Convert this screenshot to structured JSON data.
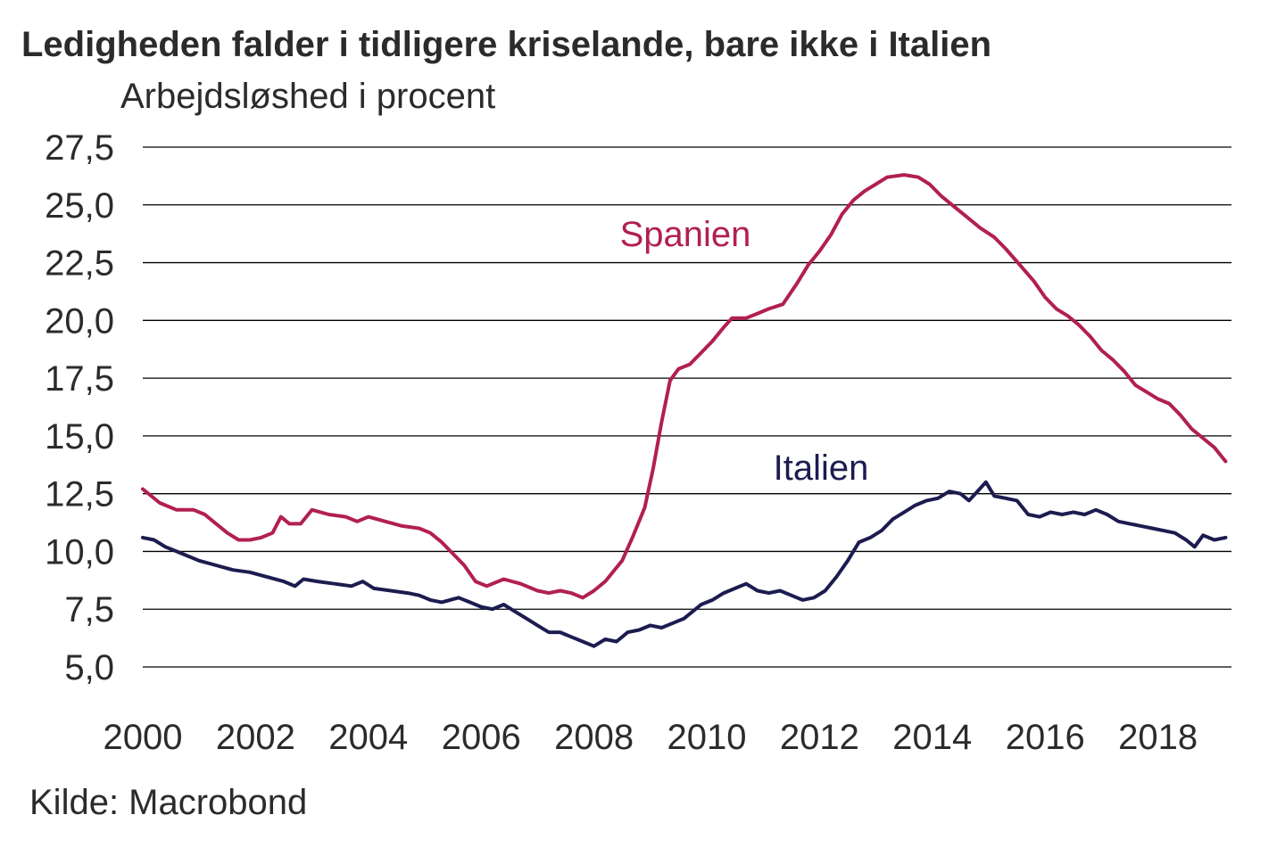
{
  "title": "Ledigheden falder i tidligere kriselande, bare ikke i Italien",
  "source": "Kilde: Macrobond",
  "colors": {
    "spanien": "#b1204f",
    "italien": "#1c1c50",
    "grid": "#000000",
    "text": "#2b2b2b"
  },
  "chart_data": {
    "type": "line",
    "ylabel": "Arbejdsløshed i procent",
    "xlabel": "",
    "ylim": [
      5.0,
      27.5
    ],
    "xlim": [
      2000,
      2019.3
    ],
    "grid": true,
    "legend": "inline labels",
    "yticks": [
      "5,0",
      "7,5",
      "10,0",
      "12,5",
      "15,0",
      "17,5",
      "20,0",
      "22,5",
      "25,0",
      "27,5"
    ],
    "ytick_values": [
      5.0,
      7.5,
      10.0,
      12.5,
      15.0,
      17.5,
      20.0,
      22.5,
      25.0,
      27.5
    ],
    "xticks": [
      "2000",
      "2002",
      "2004",
      "2006",
      "2008",
      "2010",
      "2012",
      "2014",
      "2016",
      "2018"
    ],
    "xtick_values": [
      2000,
      2002,
      2004,
      2006,
      2008,
      2010,
      2012,
      2014,
      2016,
      2018
    ],
    "series": [
      {
        "name": "Spanien",
        "color": "#b1204f",
        "points": [
          [
            2000.0,
            12.7
          ],
          [
            2000.3,
            12.1
          ],
          [
            2000.6,
            11.8
          ],
          [
            2000.9,
            11.8
          ],
          [
            2001.1,
            11.6
          ],
          [
            2001.3,
            11.2
          ],
          [
            2001.5,
            10.8
          ],
          [
            2001.7,
            10.5
          ],
          [
            2001.9,
            10.5
          ],
          [
            2002.1,
            10.6
          ],
          [
            2002.3,
            10.8
          ],
          [
            2002.45,
            11.5
          ],
          [
            2002.6,
            11.2
          ],
          [
            2002.8,
            11.2
          ],
          [
            2003.0,
            11.8
          ],
          [
            2003.3,
            11.6
          ],
          [
            2003.6,
            11.5
          ],
          [
            2003.8,
            11.3
          ],
          [
            2004.0,
            11.5
          ],
          [
            2004.3,
            11.3
          ],
          [
            2004.6,
            11.1
          ],
          [
            2004.9,
            11.0
          ],
          [
            2005.1,
            10.8
          ],
          [
            2005.3,
            10.4
          ],
          [
            2005.5,
            9.9
          ],
          [
            2005.7,
            9.4
          ],
          [
            2005.9,
            8.7
          ],
          [
            2006.1,
            8.5
          ],
          [
            2006.4,
            8.8
          ],
          [
            2006.7,
            8.6
          ],
          [
            2007.0,
            8.3
          ],
          [
            2007.2,
            8.2
          ],
          [
            2007.4,
            8.3
          ],
          [
            2007.6,
            8.2
          ],
          [
            2007.8,
            8.0
          ],
          [
            2008.0,
            8.3
          ],
          [
            2008.2,
            8.7
          ],
          [
            2008.5,
            9.6
          ],
          [
            2008.7,
            10.7
          ],
          [
            2008.9,
            11.9
          ],
          [
            2009.05,
            13.6
          ],
          [
            2009.2,
            15.6
          ],
          [
            2009.35,
            17.4
          ],
          [
            2009.5,
            17.9
          ],
          [
            2009.7,
            18.1
          ],
          [
            2009.9,
            18.6
          ],
          [
            2010.1,
            19.1
          ],
          [
            2010.3,
            19.7
          ],
          [
            2010.45,
            20.1
          ],
          [
            2010.7,
            20.1
          ],
          [
            2010.9,
            20.3
          ],
          [
            2011.1,
            20.5
          ],
          [
            2011.35,
            20.7
          ],
          [
            2011.6,
            21.6
          ],
          [
            2011.8,
            22.4
          ],
          [
            2012.0,
            23.0
          ],
          [
            2012.2,
            23.7
          ],
          [
            2012.4,
            24.6
          ],
          [
            2012.6,
            25.2
          ],
          [
            2012.8,
            25.6
          ],
          [
            2013.0,
            25.9
          ],
          [
            2013.2,
            26.2
          ],
          [
            2013.5,
            26.3
          ],
          [
            2013.75,
            26.2
          ],
          [
            2013.95,
            25.9
          ],
          [
            2014.15,
            25.4
          ],
          [
            2014.4,
            24.9
          ],
          [
            2014.6,
            24.5
          ],
          [
            2014.85,
            24.0
          ],
          [
            2015.1,
            23.6
          ],
          [
            2015.3,
            23.1
          ],
          [
            2015.55,
            22.4
          ],
          [
            2015.8,
            21.7
          ],
          [
            2016.0,
            21.0
          ],
          [
            2016.2,
            20.5
          ],
          [
            2016.4,
            20.2
          ],
          [
            2016.6,
            19.8
          ],
          [
            2016.8,
            19.3
          ],
          [
            2017.0,
            18.7
          ],
          [
            2017.2,
            18.3
          ],
          [
            2017.4,
            17.8
          ],
          [
            2017.6,
            17.2
          ],
          [
            2017.8,
            16.9
          ],
          [
            2018.0,
            16.6
          ],
          [
            2018.2,
            16.4
          ],
          [
            2018.4,
            15.9
          ],
          [
            2018.6,
            15.3
          ],
          [
            2018.8,
            14.9
          ],
          [
            2019.0,
            14.5
          ],
          [
            2019.2,
            13.9
          ]
        ]
      },
      {
        "name": "Italien",
        "color": "#1c1c50",
        "points": [
          [
            2000.0,
            10.6
          ],
          [
            2000.2,
            10.5
          ],
          [
            2000.4,
            10.2
          ],
          [
            2000.6,
            10.0
          ],
          [
            2000.8,
            9.8
          ],
          [
            2001.0,
            9.6
          ],
          [
            2001.3,
            9.4
          ],
          [
            2001.6,
            9.2
          ],
          [
            2001.9,
            9.1
          ],
          [
            2002.2,
            8.9
          ],
          [
            2002.5,
            8.7
          ],
          [
            2002.7,
            8.5
          ],
          [
            2002.85,
            8.8
          ],
          [
            2003.1,
            8.7
          ],
          [
            2003.4,
            8.6
          ],
          [
            2003.7,
            8.5
          ],
          [
            2003.9,
            8.7
          ],
          [
            2004.1,
            8.4
          ],
          [
            2004.4,
            8.3
          ],
          [
            2004.7,
            8.2
          ],
          [
            2004.9,
            8.1
          ],
          [
            2005.1,
            7.9
          ],
          [
            2005.3,
            7.8
          ],
          [
            2005.6,
            8.0
          ],
          [
            2005.8,
            7.8
          ],
          [
            2006.0,
            7.6
          ],
          [
            2006.2,
            7.5
          ],
          [
            2006.4,
            7.7
          ],
          [
            2006.6,
            7.4
          ],
          [
            2006.8,
            7.1
          ],
          [
            2007.0,
            6.8
          ],
          [
            2007.2,
            6.5
          ],
          [
            2007.4,
            6.5
          ],
          [
            2007.6,
            6.3
          ],
          [
            2007.8,
            6.1
          ],
          [
            2008.0,
            5.9
          ],
          [
            2008.2,
            6.2
          ],
          [
            2008.4,
            6.1
          ],
          [
            2008.6,
            6.5
          ],
          [
            2008.8,
            6.6
          ],
          [
            2009.0,
            6.8
          ],
          [
            2009.2,
            6.7
          ],
          [
            2009.4,
            6.9
          ],
          [
            2009.6,
            7.1
          ],
          [
            2009.75,
            7.4
          ],
          [
            2009.9,
            7.7
          ],
          [
            2010.1,
            7.9
          ],
          [
            2010.3,
            8.2
          ],
          [
            2010.5,
            8.4
          ],
          [
            2010.7,
            8.6
          ],
          [
            2010.9,
            8.3
          ],
          [
            2011.1,
            8.2
          ],
          [
            2011.3,
            8.3
          ],
          [
            2011.5,
            8.1
          ],
          [
            2011.7,
            7.9
          ],
          [
            2011.9,
            8.0
          ],
          [
            2012.1,
            8.3
          ],
          [
            2012.3,
            8.9
          ],
          [
            2012.5,
            9.6
          ],
          [
            2012.7,
            10.4
          ],
          [
            2012.9,
            10.6
          ],
          [
            2013.1,
            10.9
          ],
          [
            2013.3,
            11.4
          ],
          [
            2013.5,
            11.7
          ],
          [
            2013.7,
            12.0
          ],
          [
            2013.9,
            12.2
          ],
          [
            2014.1,
            12.3
          ],
          [
            2014.3,
            12.6
          ],
          [
            2014.5,
            12.5
          ],
          [
            2014.65,
            12.2
          ],
          [
            2014.8,
            12.6
          ],
          [
            2014.95,
            13.0
          ],
          [
            2015.1,
            12.4
          ],
          [
            2015.3,
            12.3
          ],
          [
            2015.5,
            12.2
          ],
          [
            2015.7,
            11.6
          ],
          [
            2015.9,
            11.5
          ],
          [
            2016.1,
            11.7
          ],
          [
            2016.3,
            11.6
          ],
          [
            2016.5,
            11.7
          ],
          [
            2016.7,
            11.6
          ],
          [
            2016.9,
            11.8
          ],
          [
            2017.1,
            11.6
          ],
          [
            2017.3,
            11.3
          ],
          [
            2017.5,
            11.2
          ],
          [
            2017.7,
            11.1
          ],
          [
            2017.9,
            11.0
          ],
          [
            2018.1,
            10.9
          ],
          [
            2018.3,
            10.8
          ],
          [
            2018.5,
            10.5
          ],
          [
            2018.65,
            10.2
          ],
          [
            2018.8,
            10.7
          ],
          [
            2019.0,
            10.5
          ],
          [
            2019.2,
            10.6
          ]
        ]
      }
    ],
    "annotations": [
      {
        "text": "Spanien",
        "series": "Spanien"
      },
      {
        "text": "Italien",
        "series": "Italien"
      }
    ]
  }
}
